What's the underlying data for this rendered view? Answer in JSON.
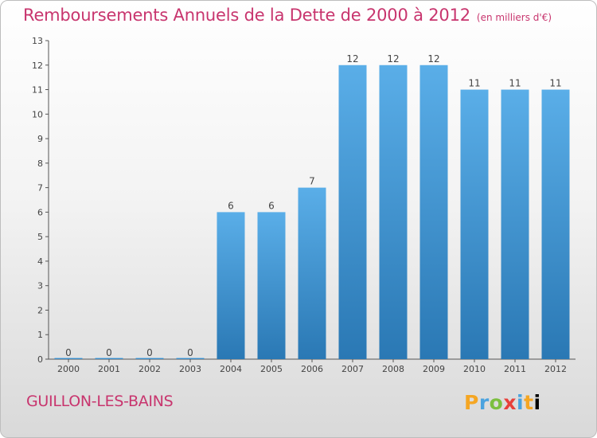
{
  "header": {
    "title": "Remboursements Annuels de la Dette de 2000 à 2012",
    "unit": "(en milliers d'€)"
  },
  "footer": {
    "commune": "GUILLON-LES-BAINS",
    "logo_letters": [
      "P",
      "r",
      "o",
      "x",
      "i",
      "t",
      "i"
    ]
  },
  "colors": {
    "accent": "#c8356e",
    "bar_top": "#5aaee8",
    "bar_bottom": "#2a78b4"
  },
  "chart_data": {
    "type": "bar",
    "title": "Remboursements Annuels de la Dette de 2000 à 2012",
    "xlabel": "",
    "ylabel": "",
    "categories": [
      "2000",
      "2001",
      "2002",
      "2003",
      "2004",
      "2005",
      "2006",
      "2007",
      "2008",
      "2009",
      "2010",
      "2011",
      "2012"
    ],
    "values": [
      0,
      0,
      0,
      0,
      6,
      6,
      7,
      12,
      12,
      12,
      11,
      11,
      11
    ],
    "data_labels": [
      "0",
      "0",
      "0",
      "0",
      "6",
      "6",
      "7",
      "12",
      "12",
      "12",
      "11",
      "11",
      "11"
    ],
    "yticks": [
      0,
      1,
      2,
      3,
      4,
      5,
      6,
      7,
      8,
      9,
      10,
      11,
      12,
      13
    ],
    "ylim": [
      0,
      13
    ],
    "grid": false,
    "legend": "none"
  }
}
